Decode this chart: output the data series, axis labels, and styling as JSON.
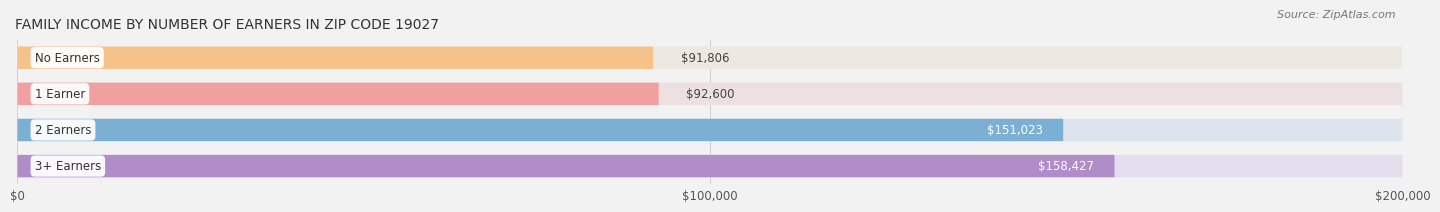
{
  "title": "FAMILY INCOME BY NUMBER OF EARNERS IN ZIP CODE 19027",
  "source": "Source: ZipAtlas.com",
  "categories": [
    "No Earners",
    "1 Earner",
    "2 Earners",
    "3+ Earners"
  ],
  "values": [
    91806,
    92600,
    151023,
    158427
  ],
  "bar_colors": [
    "#f5c28a",
    "#f0a0a0",
    "#7bafd4",
    "#b08cc8"
  ],
  "bar_bg_colors": [
    "#ede8e0",
    "#ece0e0",
    "#dde4ee",
    "#e4dded"
  ],
  "label_colors": [
    "#444444",
    "#444444",
    "#ffffff",
    "#ffffff"
  ],
  "xlim": [
    0,
    200000
  ],
  "xtick_values": [
    0,
    100000,
    200000
  ],
  "xtick_labels": [
    "$0",
    "$100,000",
    "$200,000"
  ],
  "bg_color": "#f2f2f2",
  "bar_height": 0.62,
  "title_fontsize": 10,
  "source_fontsize": 8,
  "label_fontsize": 8.5,
  "xtick_fontsize": 8.5,
  "value_label_outside_color": "#444444",
  "value_label_inside_color": "#ffffff"
}
